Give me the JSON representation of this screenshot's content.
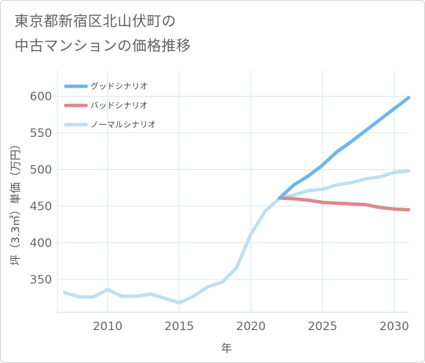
{
  "title_lines": [
    "東京都新宿区北山伏町の",
    "中古マンションの価格推移"
  ],
  "chart_data": {
    "type": "line",
    "title": "東京都新宿区北山伏町の中古マンションの価格推移",
    "xlabel": "年",
    "ylabel": "坪（3.3㎡）単価（万円）",
    "xlim": [
      2006.5,
      2031
    ],
    "ylim": [
      305,
      635
    ],
    "xticks": [
      2010,
      2015,
      2020,
      2025,
      2030
    ],
    "yticks": [
      350,
      400,
      450,
      500,
      550,
      600
    ],
    "grid": true,
    "legend_position": "top-left",
    "series": [
      {
        "name": "グッドシナリオ",
        "color": "#6db6ec",
        "x": [
          2022,
          2023,
          2024,
          2025,
          2026,
          2027,
          2028,
          2029,
          2030,
          2031
        ],
        "y": [
          461,
          479,
          491,
          506,
          524,
          538,
          553,
          568,
          583,
          598
        ]
      },
      {
        "name": "バッドシナリオ",
        "color": "#dc8890",
        "x": [
          2022,
          2023,
          2024,
          2025,
          2026,
          2027,
          2028,
          2029,
          2030,
          2031
        ],
        "y": [
          461,
          460,
          458,
          455,
          454,
          453,
          452,
          448,
          446,
          445
        ]
      },
      {
        "name": "ノーマルシナリオ",
        "color": "#bde0ee",
        "x": [
          2007,
          2008,
          2009,
          2010,
          2011,
          2012,
          2013,
          2014,
          2015,
          2016,
          2017,
          2018,
          2019,
          2020,
          2021,
          2022,
          2023,
          2024,
          2025,
          2026,
          2027,
          2028,
          2029,
          2030,
          2031
        ],
        "y": [
          332,
          326,
          326,
          336,
          327,
          327,
          330,
          324,
          318,
          327,
          340,
          346,
          366,
          412,
          443,
          461,
          465,
          471,
          473,
          479,
          482,
          487,
          490,
          496,
          498
        ]
      }
    ]
  }
}
